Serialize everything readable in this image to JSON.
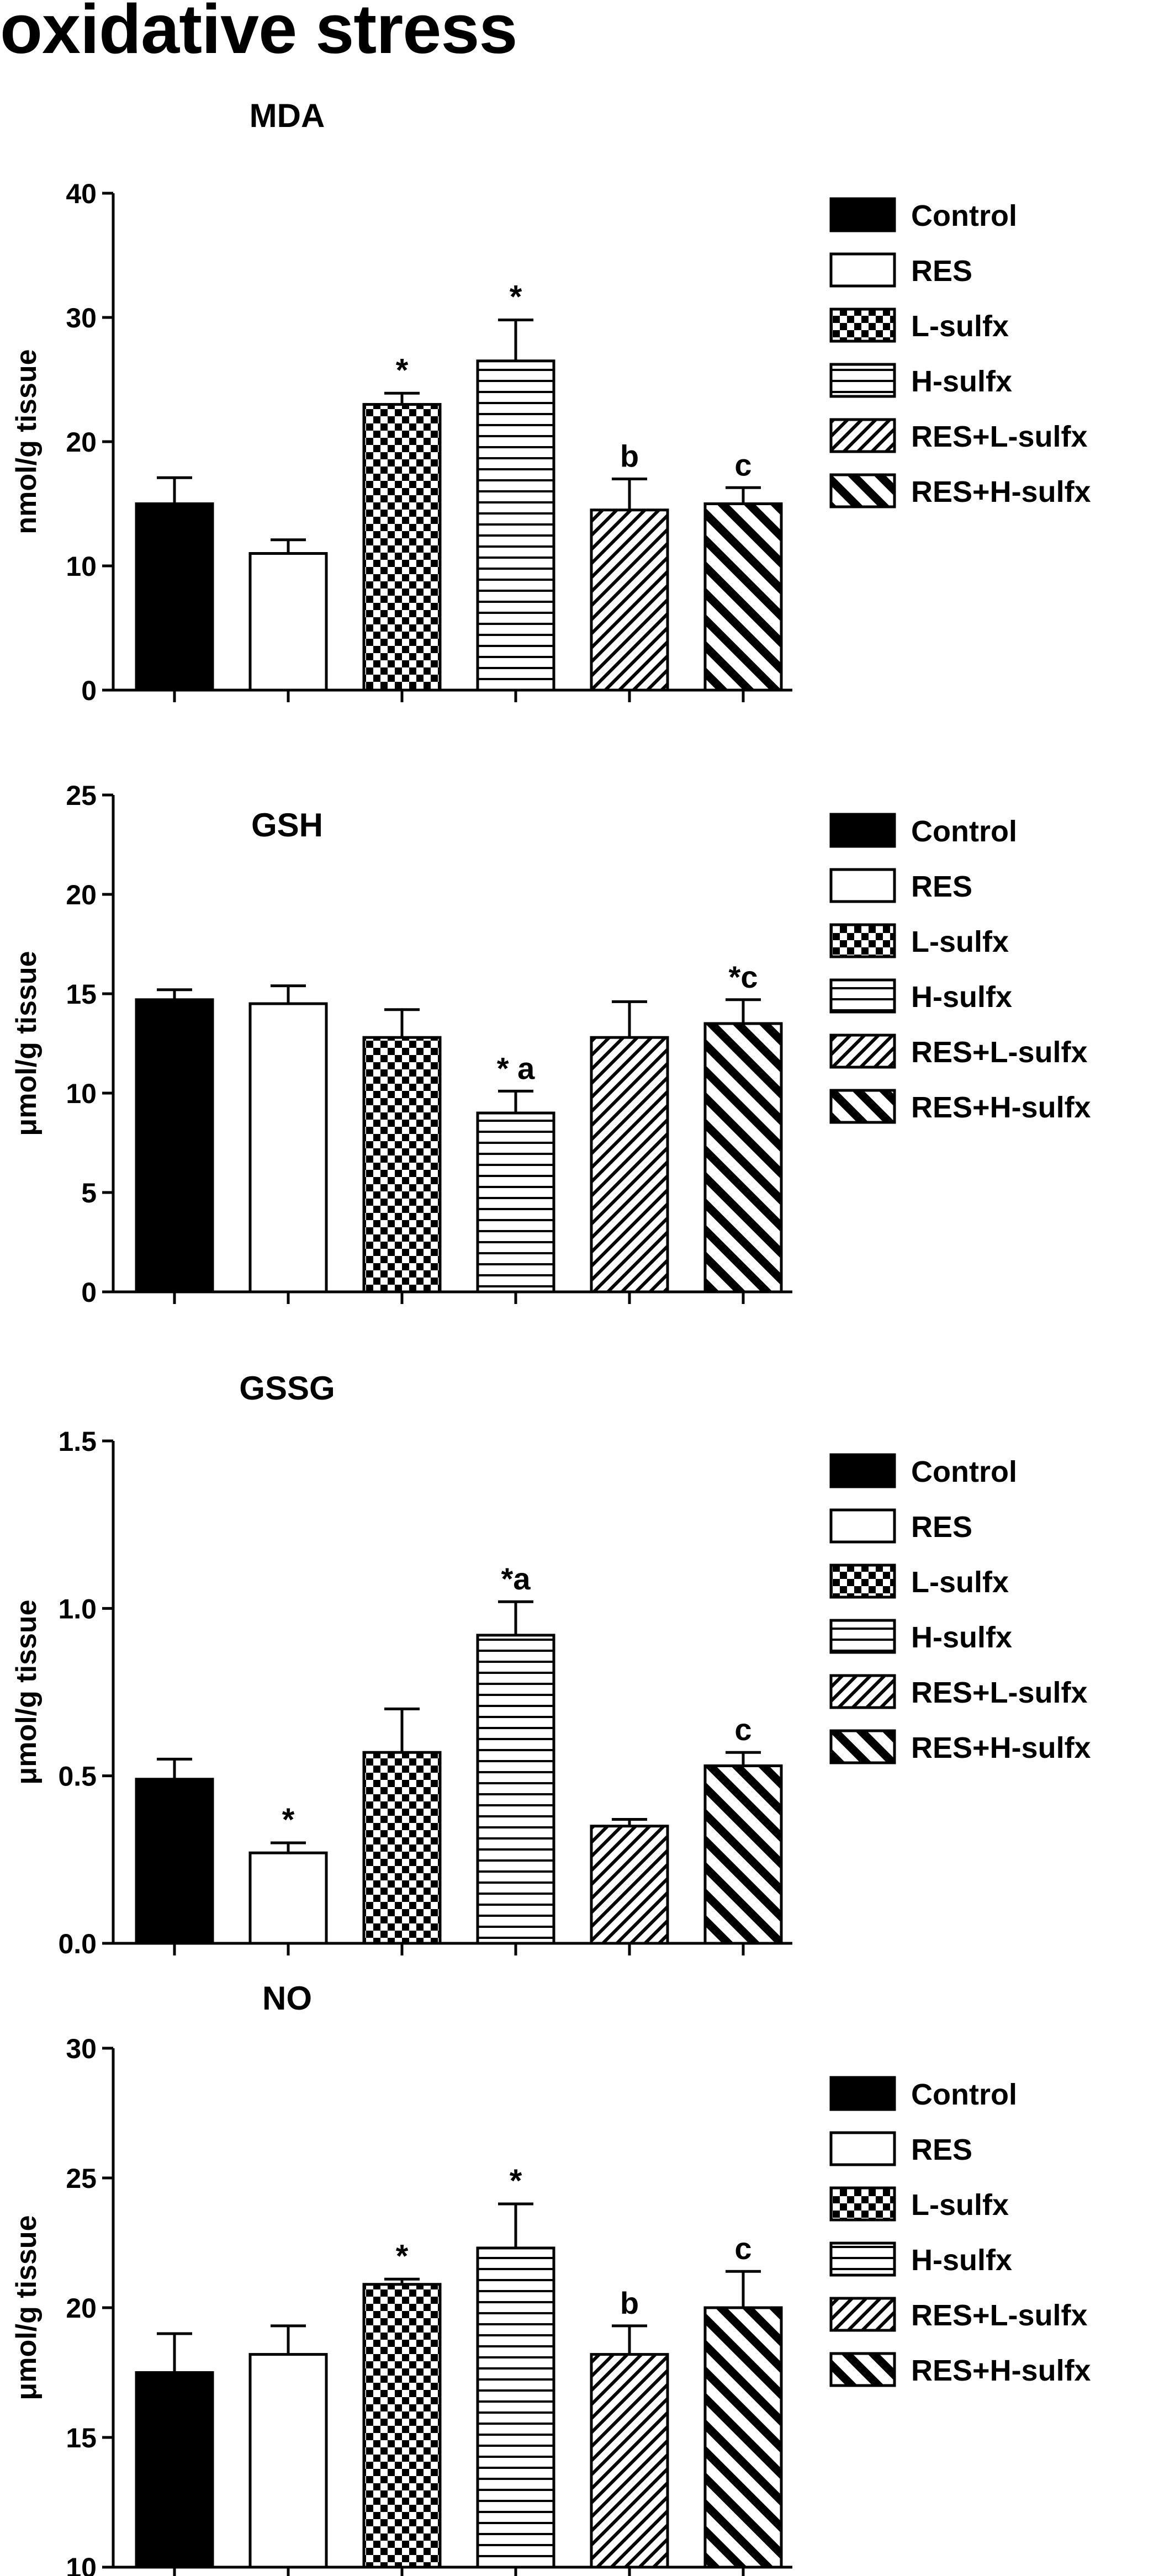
{
  "page_title": "oxidative stress",
  "chart_data": [
    {
      "type": "bar",
      "title": "MDA",
      "ylabel": "nmol/g tissue",
      "ylim": [
        0,
        40
      ],
      "yticks": [
        0,
        10,
        20,
        30,
        40
      ],
      "ytick_labels": [
        "0",
        "10",
        "20",
        "30",
        "40"
      ],
      "categories": [
        "Control",
        "RES",
        "L-sulfx",
        "H-sulfx",
        "RES+L-sulfx",
        "RES+H-sulfx"
      ],
      "values": [
        15,
        11,
        23,
        26.5,
        14.5,
        15
      ],
      "errors": [
        2.1,
        1.1,
        0.9,
        3.3,
        2.5,
        1.3
      ],
      "annotations": [
        "",
        "",
        "*",
        "*",
        "b",
        "c"
      ],
      "legend": [
        "Control",
        "RES",
        "L-sulfx",
        "H-sulfx",
        "RES+L-sulfx",
        "RES+H-sulfx"
      ],
      "legend_position": "right"
    },
    {
      "type": "bar",
      "title": "GSH",
      "ylabel": "μmol/g tissue",
      "ylim": [
        0,
        25
      ],
      "yticks": [
        0,
        5,
        10,
        15,
        20,
        25
      ],
      "ytick_labels": [
        "0",
        "5",
        "10",
        "15",
        "20",
        "25"
      ],
      "categories": [
        "Control",
        "RES",
        "L-sulfx",
        "H-sulfx",
        "RES+L-sulfx",
        "RES+H-sulfx"
      ],
      "values": [
        14.7,
        14.5,
        12.8,
        9,
        12.8,
        13.5
      ],
      "errors": [
        0.5,
        0.9,
        1.4,
        1.1,
        1.8,
        1.2
      ],
      "annotations": [
        "",
        "",
        "",
        "* a",
        "",
        "*c"
      ],
      "legend": [
        "Control",
        "RES",
        "L-sulfx",
        "H-sulfx",
        "RES+L-sulfx",
        "RES+H-sulfx"
      ],
      "legend_position": "right"
    },
    {
      "type": "bar",
      "title": "GSSG",
      "ylabel": "μmol/g tissue",
      "ylim": [
        0,
        1.5
      ],
      "yticks": [
        0,
        0.5,
        1,
        1.5
      ],
      "ytick_labels": [
        "0.0",
        "0.5",
        "1.0",
        "1.5"
      ],
      "categories": [
        "Control",
        "RES",
        "L-sulfx",
        "H-sulfx",
        "RES+L-sulfx",
        "RES+H-sulfx"
      ],
      "values": [
        0.49,
        0.27,
        0.57,
        0.92,
        0.35,
        0.53
      ],
      "errors": [
        0.06,
        0.03,
        0.13,
        0.1,
        0.02,
        0.04
      ],
      "annotations": [
        "",
        "*",
        "",
        "*a",
        "",
        "c"
      ],
      "legend": [
        "Control",
        "RES",
        "L-sulfx",
        "H-sulfx",
        "RES+L-sulfx",
        "RES+H-sulfx"
      ],
      "legend_position": "right"
    },
    {
      "type": "bar",
      "title": "NO",
      "ylabel": "μmol/g tissue",
      "ylim": [
        10,
        30
      ],
      "yticks": [
        10,
        15,
        20,
        25,
        30
      ],
      "ytick_labels": [
        "10",
        "15",
        "20",
        "25",
        "30"
      ],
      "categories": [
        "Control",
        "RES",
        "L-sulfx",
        "H-sulfx",
        "RES+L-sulfx",
        "RES+H-sulfx"
      ],
      "values": [
        17.5,
        18.2,
        20.9,
        22.3,
        18.2,
        20
      ],
      "errors": [
        1.5,
        1.1,
        0.2,
        1.7,
        1.1,
        1.4
      ],
      "annotations": [
        "",
        "",
        "*",
        "*",
        "b",
        "c"
      ],
      "legend": [
        "Control",
        "RES",
        "L-sulfx",
        "H-sulfx",
        "RES+L-sulfx",
        "RES+H-sulfx"
      ],
      "legend_position": "right"
    }
  ]
}
